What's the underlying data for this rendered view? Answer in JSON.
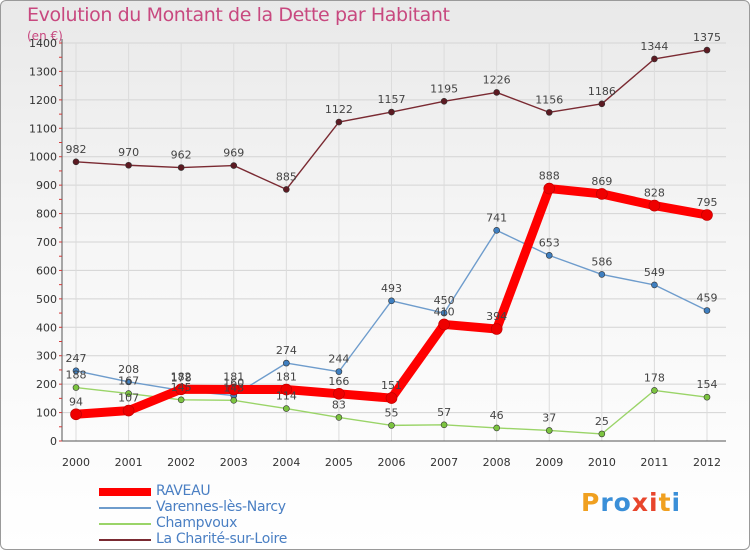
{
  "title": "Evolution du Montant de la Dette par Habitant",
  "unit": "(en €)",
  "logo": {
    "text": "Proxiti",
    "letter_colors": [
      "#f0a020",
      "#3a8fd8",
      "#3a8fd8",
      "#e8452c",
      "#e8452c",
      "#f0a020",
      "#3a8fd8"
    ]
  },
  "chart_data": {
    "type": "line",
    "title": "Evolution du Montant de la Dette par Habitant",
    "subtitle": "(en €)",
    "xlabel": "",
    "ylabel": "",
    "ylim": [
      0,
      1400
    ],
    "yticks": [
      0,
      100,
      200,
      300,
      400,
      500,
      600,
      700,
      800,
      900,
      1000,
      1100,
      1200,
      1300,
      1400
    ],
    "grid": true,
    "legend_position": "bottom-left",
    "categories": [
      "2000",
      "2001",
      "2002",
      "2003",
      "2004",
      "2005",
      "2006",
      "2007",
      "2008",
      "2009",
      "2010",
      "2011",
      "2012"
    ],
    "series": [
      {
        "name": "La Charité-sur-Loire",
        "color": "#7a2a32",
        "point": "#5c1a22",
        "values": [
          982,
          970,
          962,
          969,
          885,
          1122,
          1157,
          1195,
          1226,
          1156,
          1186,
          1344,
          1375
        ]
      },
      {
        "name": "Varennes-lès-Narcy",
        "color": "#6e9ccc",
        "point": "#3f7fc0",
        "values": [
          247,
          208,
          178,
          160,
          274,
          244,
          493,
          450,
          741,
          653,
          586,
          549,
          459
        ],
        "labels": [
          "247",
          "208",
          "178",
          "160",
          "274",
          "244",
          "493",
          "450",
          "741",
          "653",
          "586",
          "549",
          "459"
        ]
      },
      {
        "name": "Champvoux",
        "color": "#9ad468",
        "point": "#7cc440",
        "values": [
          188,
          167,
          145,
          143,
          114,
          83,
          55,
          57,
          46,
          37,
          25,
          178,
          154
        ]
      },
      {
        "name": "RAVEAU",
        "color": "#ff0000",
        "point": "#ee0000",
        "thick": true,
        "values": [
          94,
          107,
          182,
          181,
          181,
          166,
          151,
          410,
          394,
          888,
          869,
          828,
          795
        ],
        "labels": [
          "94",
          "107",
          "182",
          "181",
          "181",
          "166",
          "151",
          "410",
          "394",
          "888",
          "869",
          "828",
          "795"
        ]
      }
    ]
  },
  "legend": [
    {
      "label": "RAVEAU",
      "color": "#ff0000"
    },
    {
      "label": "Varennes-lès-Narcy",
      "color": "#6e9ccc"
    },
    {
      "label": "Champvoux",
      "color": "#9ad468"
    },
    {
      "label": "La Charité-sur-Loire",
      "color": "#7a2a32"
    }
  ]
}
